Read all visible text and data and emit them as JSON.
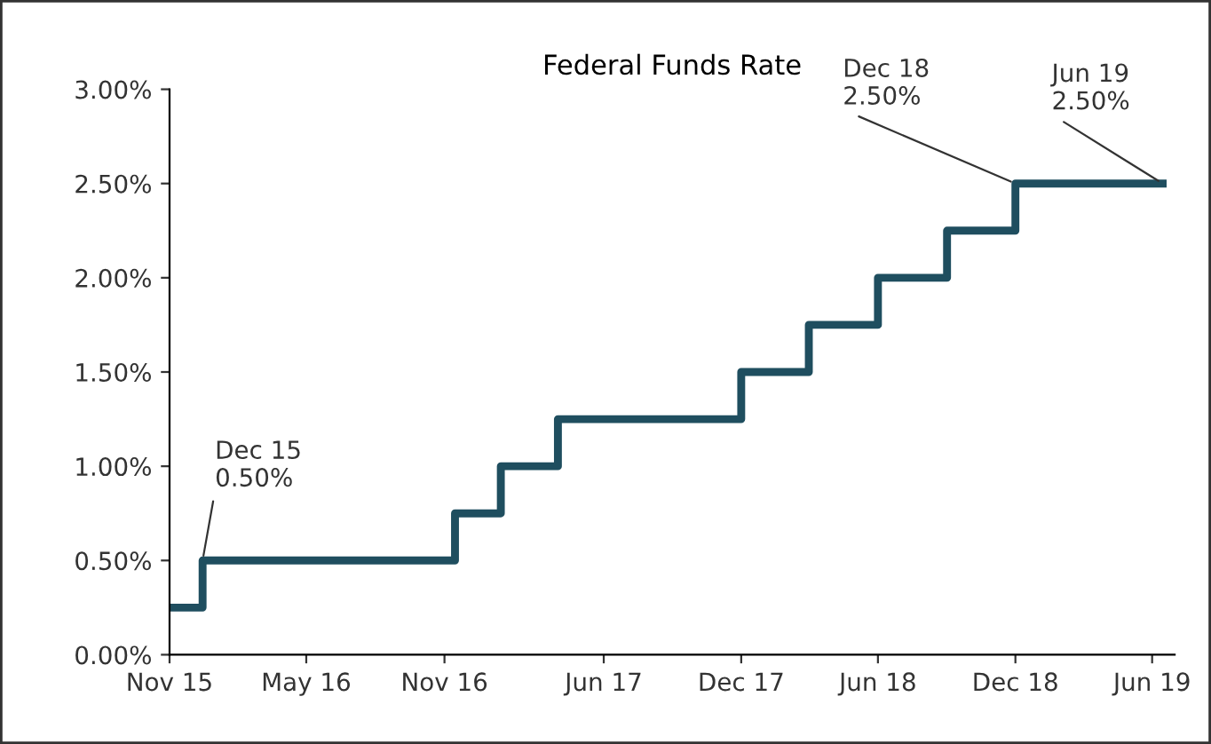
{
  "chart_data": {
    "type": "step",
    "title": "Federal Funds Rate",
    "x": [
      "2015-11-01",
      "2015-12-15",
      "2016-11-15",
      "2017-01-15",
      "2017-04-01",
      "2017-12-01",
      "2018-03-01",
      "2018-06-01",
      "2018-09-01",
      "2018-12-01",
      "2019-06-15"
    ],
    "series": [
      {
        "color": "#1f4e5f",
        "values": [
          0.25,
          0.5,
          0.75,
          1.0,
          1.25,
          1.5,
          1.75,
          2.0,
          2.25,
          2.5,
          2.5
        ]
      }
    ],
    "xlim": [
      "2015-11-01",
      "2019-07-01"
    ],
    "xticks": [
      {
        "value": "2015-11-01",
        "label": "Nov 15"
      },
      {
        "value": "2016-05-01",
        "label": "May 16"
      },
      {
        "value": "2016-11-01",
        "label": "Nov 16"
      },
      {
        "value": "2017-06-01",
        "label": "Jun 17"
      },
      {
        "value": "2017-12-01",
        "label": "Dec 17"
      },
      {
        "value": "2018-06-01",
        "label": "Jun 18"
      },
      {
        "value": "2018-12-01",
        "label": "Dec 18"
      },
      {
        "value": "2019-06-01",
        "label": "Jun 19"
      }
    ],
    "ylim": [
      0,
      3
    ],
    "yticks": [
      {
        "value": 0,
        "label": "0.00%"
      },
      {
        "value": 0.5,
        "label": "0.50%"
      },
      {
        "value": 1.0,
        "label": "1.00%"
      },
      {
        "value": 1.5,
        "label": "1.50%"
      },
      {
        "value": 2.0,
        "label": "2.00%"
      },
      {
        "value": 2.5,
        "label": "2.50%"
      },
      {
        "value": 3.0,
        "label": "3.00%"
      }
    ],
    "annotations": [
      {
        "text": "Dec 15\n0.50%",
        "x": "2015-12-15",
        "y": 0.5
      },
      {
        "text": "Dec 18\n2.50%",
        "x": "2018-12-01",
        "y": 2.5
      },
      {
        "text": "Jun 19\n2.50%",
        "x": "2019-06-15",
        "y": 2.5
      }
    ],
    "grid": false,
    "legend": false,
    "marker": "none",
    "line_style": "solid"
  }
}
